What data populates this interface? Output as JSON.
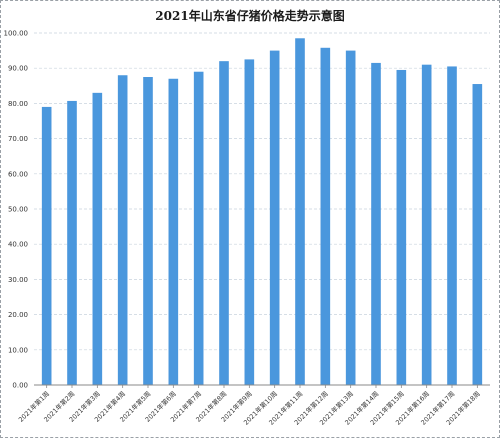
{
  "chart_data": {
    "type": "bar",
    "title": "2021年山东省仔猪价格走势示意图",
    "categories": [
      "2021年第1周",
      "2021年第2周",
      "2021年第3周",
      "2021年第4周",
      "2021年第5周",
      "2021年第6周",
      "2021年第7周",
      "2021年第8周",
      "2021年第9周",
      "2021年第10周",
      "2021年第11周",
      "2021年第12周",
      "2021年第13周",
      "2021年第14周",
      "2021年第15周",
      "2021年第16周",
      "2021年第17周",
      "2021年第18周"
    ],
    "values": [
      79.0,
      80.7,
      83.0,
      88.0,
      87.5,
      87.0,
      89.0,
      92.0,
      92.5,
      95.0,
      98.5,
      95.8,
      95.0,
      91.5,
      89.5,
      91.0,
      90.5,
      85.5
    ],
    "ylim": [
      0,
      100
    ],
    "yticks": [
      "0.00",
      "10.00",
      "20.00",
      "30.00",
      "40.00",
      "50.00",
      "60.00",
      "70.00",
      "80.00",
      "90.00",
      "100.00"
    ],
    "xlabel": "",
    "ylabel": "",
    "grid": true,
    "colors": {
      "bar": "#4a97dd",
      "grid": "#c9d3de",
      "axis": "#888888"
    }
  }
}
